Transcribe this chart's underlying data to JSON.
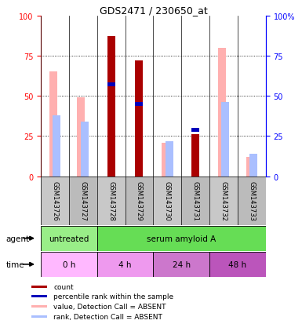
{
  "title": "GDS2471 / 230650_at",
  "samples": [
    "GSM143726",
    "GSM143727",
    "GSM143728",
    "GSM143729",
    "GSM143730",
    "GSM143731",
    "GSM143732",
    "GSM143733"
  ],
  "count_values": [
    0,
    0,
    87,
    72,
    0,
    26,
    0,
    0
  ],
  "percentile_rank": [
    null,
    null,
    57,
    45,
    null,
    29,
    null,
    null
  ],
  "absent_value": [
    65,
    49,
    0,
    0,
    21,
    0,
    80,
    12
  ],
  "absent_rank": [
    38,
    34,
    0,
    0,
    22,
    0,
    46,
    14
  ],
  "count_color": "#AA0000",
  "percentile_color": "#0000BB",
  "absent_value_color": "#FFB0B0",
  "absent_rank_color": "#AABFFF",
  "ylim": [
    0,
    100
  ],
  "yticks_left": [
    0,
    25,
    50,
    75,
    100
  ],
  "ytick_labels_left": [
    "0",
    "25",
    "50",
    "75",
    "100"
  ],
  "ytick_labels_right": [
    "0",
    "25",
    "50",
    "75",
    "100%"
  ],
  "agent_untreated_color": "#99EE88",
  "agent_serum_color": "#66DD55",
  "time_0h_color": "#FFB8FF",
  "time_4h_color": "#EE99EE",
  "time_24h_color": "#CC77CC",
  "time_48h_color": "#BB55BB",
  "sample_bg_even": "#C8C8C8",
  "sample_bg_odd": "#BBBBBB",
  "legend_items": [
    {
      "color": "#AA0000",
      "label": "count"
    },
    {
      "color": "#0000BB",
      "label": "percentile rank within the sample"
    },
    {
      "color": "#FFB0B0",
      "label": "value, Detection Call = ABSENT"
    },
    {
      "color": "#AABFFF",
      "label": "rank, Detection Call = ABSENT"
    }
  ]
}
